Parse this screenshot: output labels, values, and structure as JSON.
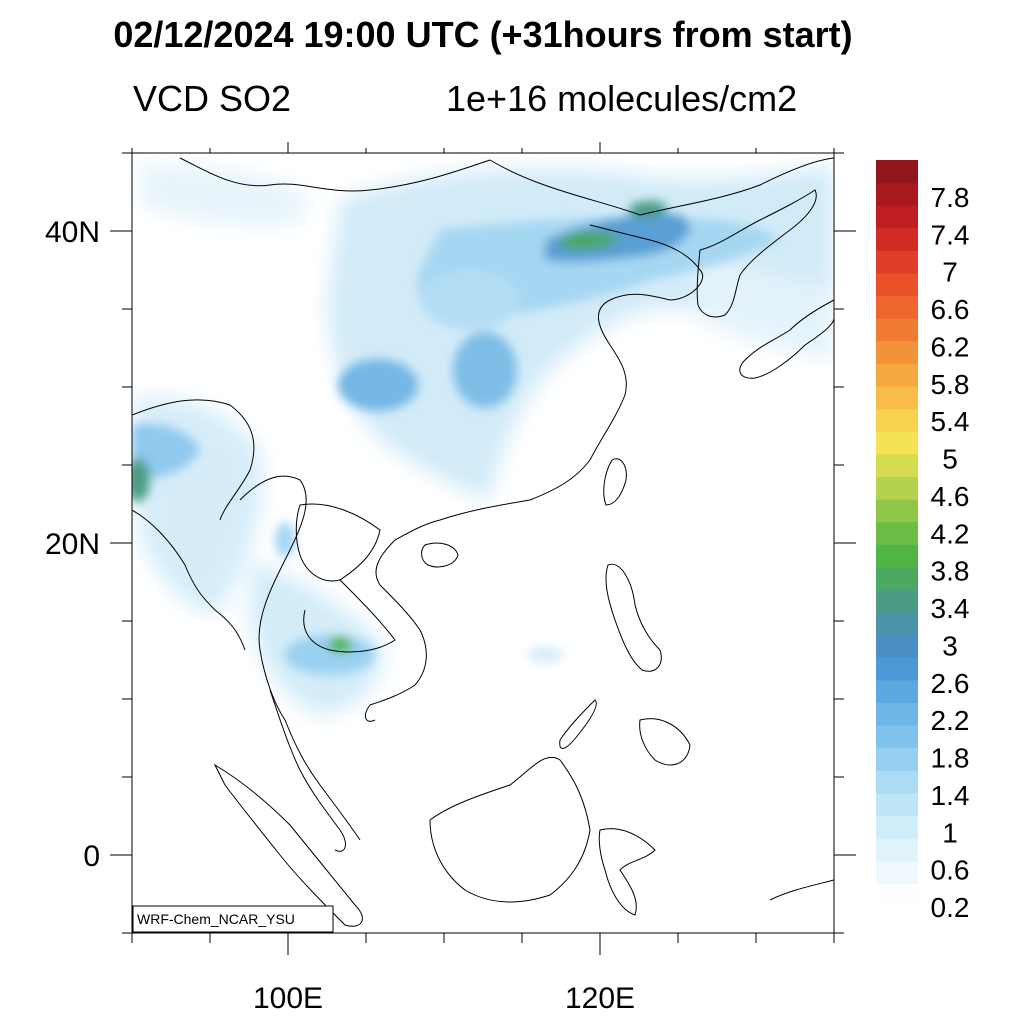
{
  "header": {
    "title": "02/12/2024 19:00 UTC (+31hours from start)",
    "left_label": "VCD SO2",
    "right_label": "1e+16 molecules/cm2"
  },
  "map": {
    "lon_range": [
      90,
      135
    ],
    "lat_range": [
      -5,
      45
    ],
    "lon_ticks": [
      {
        "value": 100,
        "label": "100E"
      },
      {
        "value": 120,
        "label": "120E"
      }
    ],
    "lat_ticks": [
      {
        "value": 0,
        "label": "0"
      },
      {
        "value": 20,
        "label": "20N"
      },
      {
        "value": 40,
        "label": "40N"
      }
    ],
    "watermark": "WRF-Chem_NCAR_YSU"
  },
  "colorbar": {
    "labels": [
      "7.8",
      "7.4",
      "7",
      "6.6",
      "6.2",
      "5.8",
      "5.4",
      "5",
      "4.6",
      "4.2",
      "3.8",
      "3.4",
      "3",
      "2.6",
      "2.2",
      "1.8",
      "1.4",
      "1",
      "0.6",
      "0.2"
    ],
    "colors": [
      "#fdfeff",
      "#eef8fd",
      "#e0f3fb",
      "#cfecf9",
      "#bfe5f7",
      "#abdcf4",
      "#95d0f0",
      "#80c3ec",
      "#6db6e7",
      "#5ca8e0",
      "#4d98d7",
      "#4a8fc6",
      "#4a93a8",
      "#4a9c84",
      "#4aa860",
      "#4fb545",
      "#6cbd45",
      "#90c748",
      "#b4d24d",
      "#d4dc50",
      "#f5e255",
      "#f8d14e",
      "#f8bd47",
      "#f6a840",
      "#f4923a",
      "#f27b33",
      "#ef652e",
      "#ea502a",
      "#e03c27",
      "#d22b24",
      "#bf1f22",
      "#a8181f",
      "#90161c"
    ]
  },
  "colors": {
    "land_edge": "#000000",
    "background": "#ffffff"
  }
}
